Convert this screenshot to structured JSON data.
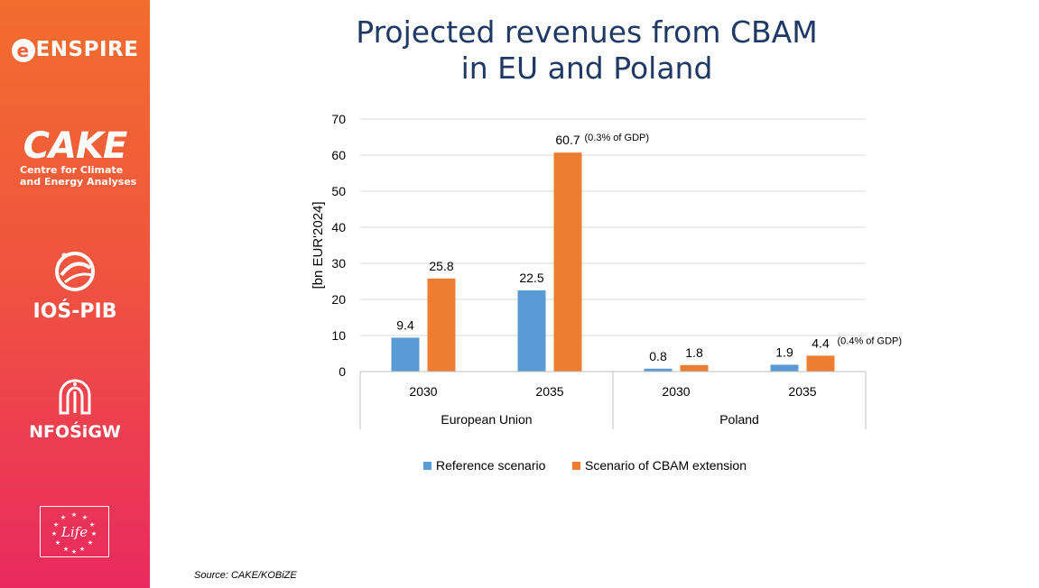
{
  "slide": {
    "title_line1": "Projected revenues from CBAM",
    "title_line2": "in EU and Poland",
    "source": "Source: CAKE/KOBiZE"
  },
  "logos": {
    "enspire": "ENSPIRE",
    "cake": "CAKE",
    "cake_subtitle_line1": "Centre for Climate",
    "cake_subtitle_line2": "and Energy Analyses",
    "ios": "IOŚ-PIB",
    "nfos": "NFOŚiGW",
    "life": "Life"
  },
  "colors": {
    "sidebar_top": "#f26d2e",
    "sidebar_bottom": "#e92a5f",
    "title": "#1f3864",
    "reference": "#5b9bd5",
    "cbam": "#ed7d31"
  },
  "chart_data": {
    "type": "bar",
    "ylabel": "[bn EUR'2024]",
    "ylim": [
      0,
      70
    ],
    "yticks": [
      0,
      10,
      20,
      30,
      40,
      50,
      60,
      70
    ],
    "grid": true,
    "legend_position": "bottom",
    "groups": [
      "European Union",
      "Poland"
    ],
    "categories": [
      "2030",
      "2035",
      "2030",
      "2035"
    ],
    "category_group": [
      0,
      0,
      1,
      1
    ],
    "series": [
      {
        "name": "Reference scenario",
        "color": "#5b9bd5",
        "values": [
          9.4,
          22.5,
          0.8,
          1.9
        ],
        "labels": [
          "9.4",
          "22.5",
          "0.8",
          "1.9"
        ]
      },
      {
        "name": "Scenario of CBAM extension",
        "color": "#ed7d31",
        "values": [
          25.8,
          60.7,
          1.8,
          4.4
        ],
        "labels": [
          "25.8",
          "60.7",
          "1.8",
          "4.4"
        ]
      }
    ],
    "annotations": [
      {
        "series": 1,
        "index": 1,
        "text": "(0.3% of GDP)"
      },
      {
        "series": 1,
        "index": 3,
        "text": "(0.4% of GDP)"
      }
    ]
  }
}
